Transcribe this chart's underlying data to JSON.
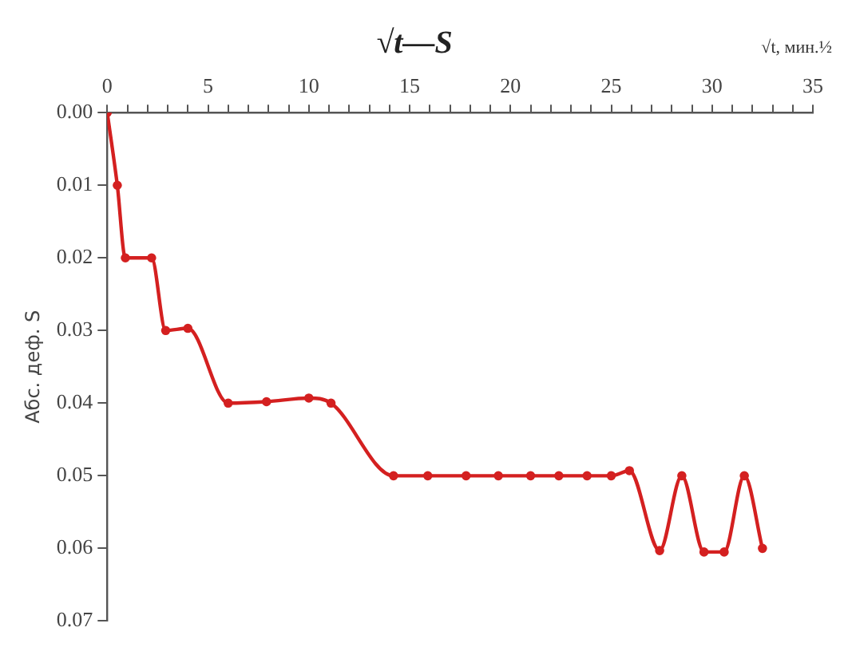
{
  "chart_data": {
    "type": "line",
    "title": "√t—S",
    "xlabel": "√t, мин.½",
    "ylabel": "Абс. деф. S",
    "x": [
      0,
      0.5,
      0.9,
      2.2,
      2.9,
      4.0,
      6.0,
      7.9,
      10.0,
      11.1,
      14.2,
      15.9,
      17.8,
      19.4,
      21.0,
      22.4,
      23.8,
      25.0,
      25.9,
      27.4,
      28.5,
      29.6,
      30.6,
      31.6,
      32.5
    ],
    "series": [
      {
        "color": "#d42020",
        "values": [
          0,
          0.01,
          0.02,
          0.02,
          0.03,
          0.0297,
          0.04,
          0.0398,
          0.0393,
          0.04,
          0.05,
          0.05,
          0.05,
          0.05,
          0.05,
          0.05,
          0.05,
          0.05,
          0.0493,
          0.0603,
          0.05,
          0.0605,
          0.0605,
          0.05,
          0.06
        ]
      }
    ],
    "xlim": [
      0,
      35
    ],
    "ylim": [
      0.07,
      0
    ],
    "xticks": [
      0,
      {
        "value": 1,
        "label": null
      },
      {
        "value": 2,
        "label": null
      },
      {
        "value": 3,
        "label": null
      },
      {
        "value": 4,
        "label": null
      },
      5,
      {
        "value": 6,
        "label": null
      },
      {
        "value": 7,
        "label": null
      },
      {
        "value": 8,
        "label": null
      },
      {
        "value": 9,
        "label": null
      },
      10,
      {
        "value": 11,
        "label": null
      },
      {
        "value": 12,
        "label": null
      },
      {
        "value": 13,
        "label": null
      },
      {
        "value": 14,
        "label": null
      },
      15,
      {
        "value": 16,
        "label": null
      },
      {
        "value": 17,
        "label": null
      },
      {
        "value": 18,
        "label": null
      },
      {
        "value": 19,
        "label": null
      },
      20,
      {
        "value": 21,
        "label": null
      },
      {
        "value": 22,
        "label": null
      },
      {
        "value": 23,
        "label": null
      },
      {
        "value": 24,
        "label": null
      },
      25,
      {
        "value": 26,
        "label": null
      },
      {
        "value": 27,
        "label": null
      },
      {
        "value": 28,
        "label": null
      },
      {
        "value": 29,
        "label": null
      },
      30,
      {
        "value": 31,
        "label": null
      },
      {
        "value": 32,
        "label": null
      },
      {
        "value": 33,
        "label": null
      },
      {
        "value": 34,
        "label": null
      },
      35
    ],
    "yticks": [
      {
        "value": 0,
        "label": "0.00"
      },
      {
        "value": 0.01,
        "label": "0.01"
      },
      {
        "value": 0.02,
        "label": "0.02"
      },
      {
        "value": 0.03,
        "label": "0.03"
      },
      {
        "value": 0.04,
        "label": "0.04"
      },
      {
        "value": 0.05,
        "label": "0.05"
      },
      {
        "value": 0.06,
        "label": "0.06"
      },
      {
        "value": 0.07,
        "label": "0.07"
      }
    ],
    "grid": false,
    "legend": false,
    "marker": "circle",
    "line_style": "solid"
  }
}
